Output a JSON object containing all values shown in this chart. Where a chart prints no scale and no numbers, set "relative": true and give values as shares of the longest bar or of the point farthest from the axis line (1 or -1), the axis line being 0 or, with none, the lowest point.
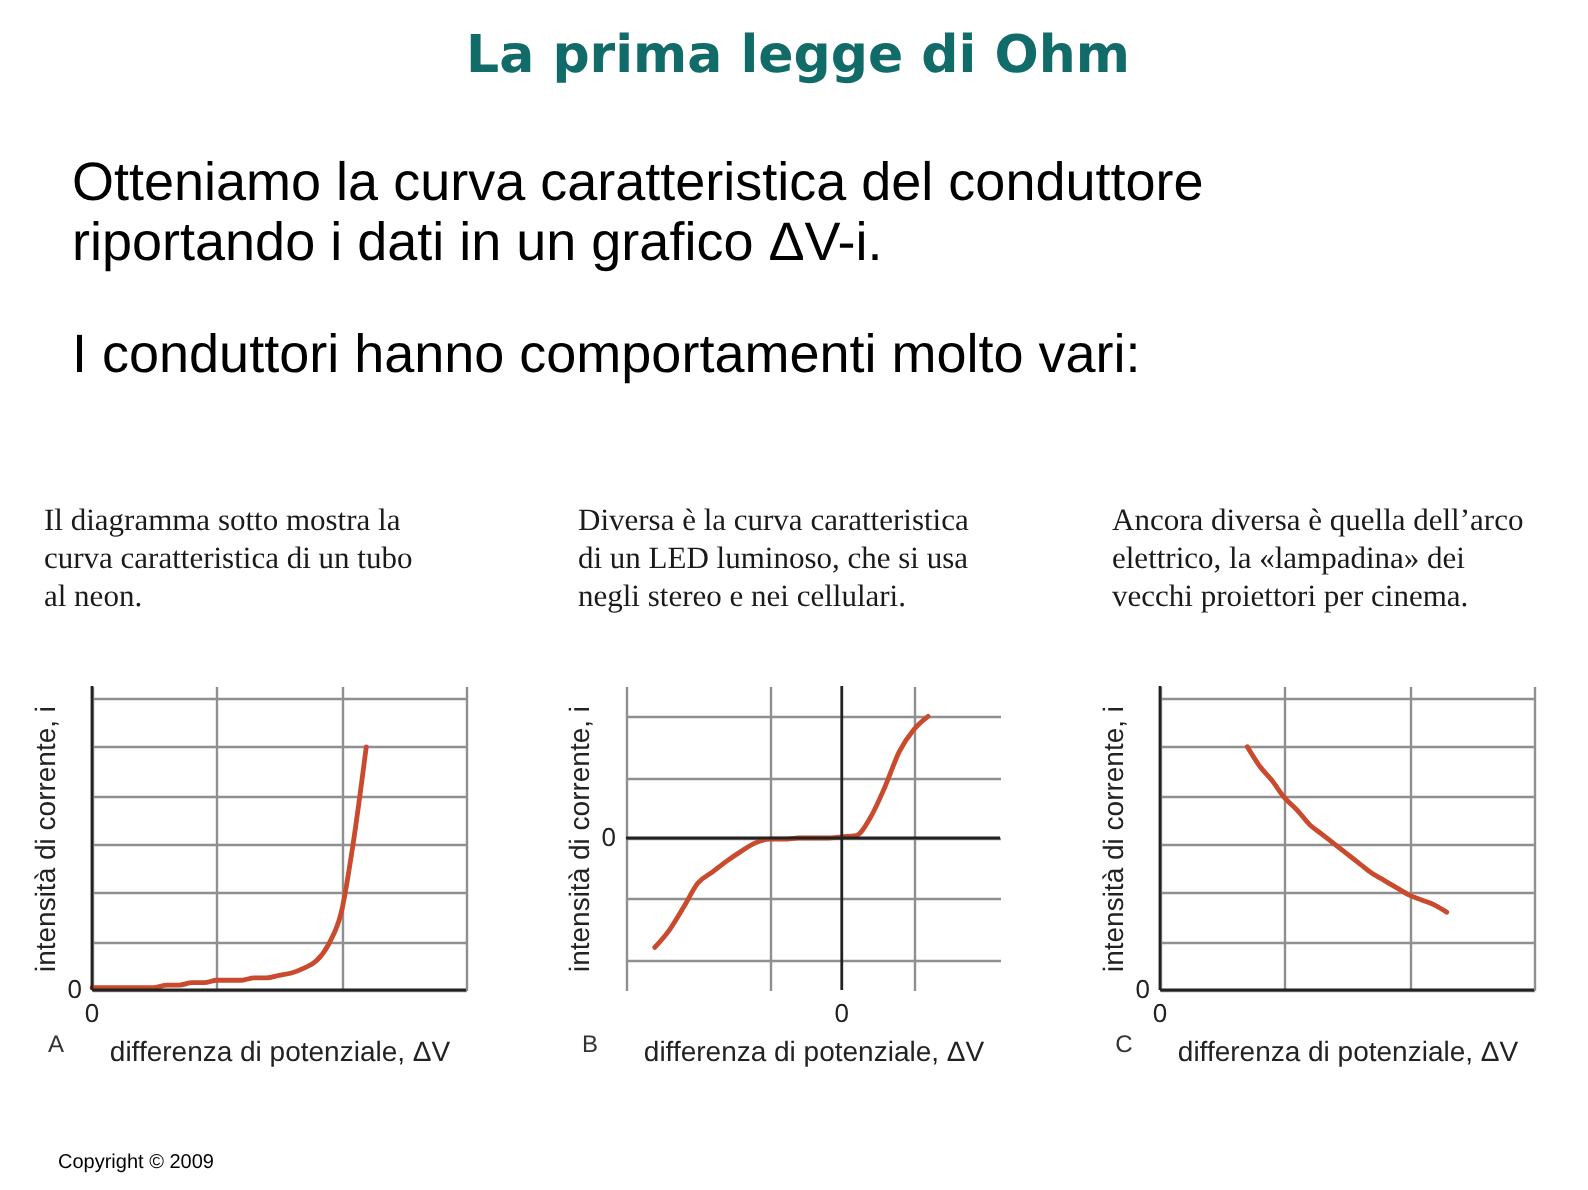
{
  "chart_data": [
    {
      "type": "other",
      "title": "La prima legge di Ohm",
      "annotations": [
        "Otteniamo la curva caratteristica del conduttore riportando i dati in un grafico ΔV-i.",
        "I conduttori hanno comportamenti molto vari:"
      ]
    },
    {
      "type": "line",
      "title": "Il diagramma sotto mostra la curva caratteristica di un tubo al neon.",
      "xlabel": "differenza di potenziale, ΔV",
      "ylabel": "intensità di corrente, i",
      "relative": true,
      "grid": true,
      "categories": [
        null,
        null,
        null,
        null,
        null,
        null,
        null,
        null,
        null,
        null,
        null,
        null,
        null,
        null,
        null,
        null,
        null,
        null,
        null,
        null,
        null,
        null,
        null,
        null,
        null,
        null,
        null,
        null,
        null,
        null,
        null
      ],
      "series": [
        {
          "color": "#c94a2c",
          "values": [
            0.01,
            0.01,
            0.01,
            0.01,
            0.01,
            0.01,
            0.02,
            0.02,
            0.03,
            0.03,
            0.04,
            0.04,
            0.04,
            0.05,
            0.05,
            0.06,
            0.07,
            0.09,
            0.12,
            0.19,
            0.32,
            0.62,
            1,
            null,
            null,
            null,
            null,
            null,
            null,
            null,
            null
          ]
        }
      ],
      "annotations": [
        "0",
        "0",
        "A"
      ]
    },
    {
      "type": "line",
      "title": "Diversa è la curva caratteristica di un LED luminoso, che si usa negli stereo e nei cellulari.",
      "xlabel": "differenza di potenziale, ΔV",
      "ylabel": "intensità di corrente, i",
      "relative": true,
      "grid": true,
      "categories": [
        null,
        null,
        null,
        null,
        null,
        null,
        null,
        null,
        null,
        null,
        null,
        null,
        null,
        null,
        null,
        null,
        null,
        null,
        null,
        null,
        null,
        null,
        null,
        null,
        null,
        null,
        null
      ],
      "series": [
        {
          "color": "#c94a2c",
          "values": [
            null,
            null,
            -0.9,
            -0.76,
            -0.57,
            -0.37,
            -0.28,
            -0.19,
            -0.11,
            -0.04,
            -0.01,
            -0.01,
            0,
            0,
            0,
            0.01,
            0.02,
            0.17,
            0.42,
            0.71,
            0.89,
            1,
            null,
            null,
            null,
            null,
            null
          ]
        }
      ],
      "annotations": [
        "0",
        "0",
        "B"
      ]
    },
    {
      "type": "line",
      "title": "Ancora diversa è quella dell’arco elettrico, la «lampadina» dei vecchi proiettori per cinema.",
      "xlabel": "differenza di potenziale, ΔV",
      "ylabel": "intensità di corrente, i",
      "relative": true,
      "grid": true,
      "categories": [
        null,
        null,
        null,
        null,
        null,
        null,
        null,
        null,
        null,
        null,
        null,
        null,
        null,
        null,
        null,
        null,
        null,
        null,
        null,
        null,
        null,
        null,
        null,
        null,
        null,
        null,
        null,
        null,
        null,
        null,
        null
      ],
      "series": [
        {
          "color": "#c94a2c",
          "values": [
            null,
            null,
            null,
            null,
            null,
            null,
            null,
            1,
            0.92,
            0.86,
            0.79,
            0.74,
            0.68,
            0.64,
            0.6,
            0.56,
            0.52,
            0.48,
            0.45,
            0.42,
            0.39,
            0.37,
            0.35,
            0.32,
            null,
            null,
            null,
            null,
            null,
            null,
            null
          ]
        }
      ],
      "annotations": [
        "0",
        "0",
        "C"
      ]
    },
    {
      "type": "other",
      "annotations": [
        "Copyright © 2009"
      ]
    }
  ]
}
